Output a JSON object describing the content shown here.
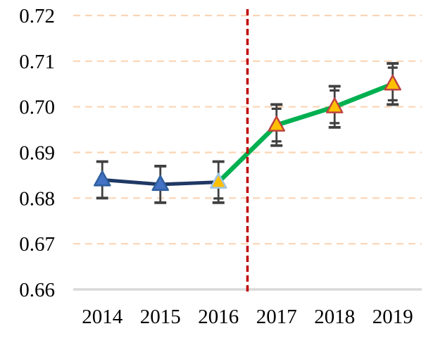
{
  "chart_data": {
    "type": "line",
    "title": "",
    "xlabel": "",
    "ylabel": "",
    "ylim": [
      0.66,
      0.72
    ],
    "y_ticks": [
      "0.72",
      "0.71",
      "0.70",
      "0.69",
      "0.68",
      "0.67",
      "0.66"
    ],
    "categories": [
      "2014",
      "2015",
      "2016",
      "2017",
      "2018",
      "2019"
    ],
    "points": [
      {
        "year": "2014",
        "value": 0.684,
        "err": 0.004,
        "marker": "blue",
        "cap_top": "single",
        "cap_bottom": "single"
      },
      {
        "year": "2015",
        "value": 0.683,
        "err": 0.004,
        "marker": "blue",
        "cap_top": "single",
        "cap_bottom": "single"
      },
      {
        "year": "2016",
        "value": 0.6835,
        "err": 0.0045,
        "marker": "gold-blue",
        "cap_top": "single",
        "cap_bottom": "double"
      },
      {
        "year": "2017",
        "value": 0.696,
        "err": 0.0045,
        "marker": "gold-red",
        "cap_top": "double",
        "cap_bottom": "double"
      },
      {
        "year": "2018",
        "value": 0.7,
        "err": 0.0045,
        "marker": "gold-red",
        "cap_top": "double",
        "cap_bottom": "double"
      },
      {
        "year": "2019",
        "value": 0.705,
        "err": 0.0045,
        "marker": "gold-red",
        "cap_top": "double",
        "cap_bottom": "double"
      }
    ],
    "segments": [
      {
        "name": "pre-2016",
        "indices": [
          0,
          1,
          2
        ],
        "color": "#1F3864"
      },
      {
        "name": "post-2016",
        "indices": [
          2,
          3,
          4,
          5
        ],
        "color": "#00B050"
      }
    ],
    "reference_line": {
      "between": [
        "2016",
        "2017"
      ],
      "color": "#C00000",
      "style": "dashed"
    },
    "grid": {
      "color": "#FBD5B5",
      "style": "dashed",
      "on": true
    },
    "axis_color": "#D9D9D9",
    "errorbar_color": "#404040",
    "legend_position": "none",
    "marker_styles": {
      "blue": {
        "fill": "#4472C4",
        "stroke": "#2E5F9E"
      },
      "gold-blue": {
        "fill": "#FFC000",
        "stroke": "#9DC3E6"
      },
      "gold-red": {
        "fill": "#FFC000",
        "stroke": "#BF4342"
      }
    }
  }
}
